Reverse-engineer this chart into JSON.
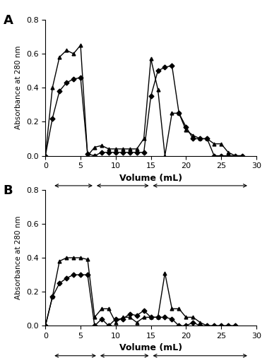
{
  "panel_A": {
    "diamond_x": [
      0,
      1,
      2,
      3,
      4,
      5,
      6,
      7,
      8,
      9,
      10,
      11,
      12,
      13,
      14,
      15,
      16,
      17,
      18,
      19,
      20,
      21,
      22,
      23,
      24,
      25,
      26,
      27,
      28
    ],
    "diamond_y": [
      0,
      0.22,
      0.38,
      0.43,
      0.45,
      0.46,
      0.01,
      0.0,
      0.02,
      0.02,
      0.02,
      0.02,
      0.02,
      0.02,
      0.02,
      0.35,
      0.5,
      0.52,
      0.53,
      0.25,
      0.17,
      0.1,
      0.1,
      0.1,
      0.0,
      0.0,
      0.0,
      0.0,
      0.0
    ],
    "triangle_x": [
      0,
      1,
      2,
      3,
      4,
      5,
      6,
      7,
      8,
      9,
      10,
      11,
      12,
      13,
      14,
      15,
      16,
      17,
      18,
      19,
      20,
      21,
      22,
      23,
      24,
      25,
      26,
      27,
      28
    ],
    "triangle_y": [
      0,
      0.4,
      0.58,
      0.62,
      0.6,
      0.65,
      0.0,
      0.05,
      0.06,
      0.04,
      0.04,
      0.04,
      0.04,
      0.04,
      0.1,
      0.57,
      0.39,
      0.0,
      0.25,
      0.25,
      0.15,
      0.12,
      0.1,
      0.1,
      0.07,
      0.07,
      0.02,
      0.0,
      0.0
    ]
  },
  "panel_B": {
    "diamond_x": [
      0,
      1,
      2,
      3,
      4,
      5,
      6,
      7,
      8,
      9,
      10,
      11,
      12,
      13,
      14,
      15,
      16,
      17,
      18,
      19,
      20,
      21,
      22,
      23,
      24,
      25,
      26,
      27
    ],
    "diamond_y": [
      0,
      0.17,
      0.25,
      0.28,
      0.3,
      0.3,
      0.3,
      0.0,
      0.04,
      0.0,
      0.04,
      0.04,
      0.07,
      0.06,
      0.09,
      0.05,
      0.05,
      0.05,
      0.04,
      0.0,
      0.0,
      0.02,
      0.0,
      0.0,
      0.0,
      0.0,
      0.0,
      0.0
    ],
    "triangle_x": [
      0,
      1,
      2,
      3,
      4,
      5,
      6,
      7,
      8,
      9,
      10,
      11,
      12,
      13,
      14,
      15,
      16,
      17,
      18,
      19,
      20,
      21,
      22,
      23,
      24,
      25,
      26,
      27
    ],
    "triangle_y": [
      0,
      0.17,
      0.38,
      0.4,
      0.4,
      0.4,
      0.39,
      0.05,
      0.1,
      0.1,
      0.02,
      0.05,
      0.05,
      0.02,
      0.05,
      0.05,
      0.05,
      0.31,
      0.1,
      0.1,
      0.05,
      0.05,
      0.02,
      0.0,
      0.0,
      0.0,
      0.0,
      0.0
    ]
  },
  "ylim": [
    0,
    0.8
  ],
  "xlim": [
    0,
    30
  ],
  "ylabel": "Absorbance at 280 nm",
  "xlabel": "Volume (mL)",
  "xticks": [
    0,
    5,
    10,
    15,
    20,
    25,
    30
  ],
  "yticks": [
    0,
    0.2,
    0.4,
    0.6,
    0.8
  ],
  "label_A": "A",
  "label_B": "B",
  "bkt_A": [
    1,
    7
  ],
  "wash_A": [
    7,
    15
  ],
  "elut_A": [
    15,
    29
  ],
  "bkt_B": [
    1,
    7.5
  ],
  "wash_B": [
    7.5,
    15
  ],
  "elut_B": [
    15,
    29
  ]
}
